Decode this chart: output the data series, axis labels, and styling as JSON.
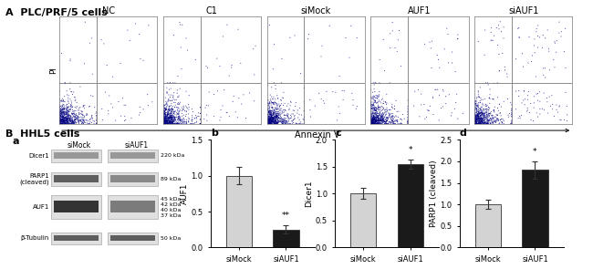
{
  "panel_A_label": "A  PLC/PRF/5 cells",
  "panel_B_label": "B  HHL5 cells",
  "flow_titles": [
    "NC",
    "C1",
    "siMock",
    "AUF1",
    "siAUF1"
  ],
  "panel_a_label": "a",
  "panel_b_label": "b",
  "panel_c_label": "c",
  "panel_d_label": "d",
  "bar_b": {
    "ylabel": "AUF1",
    "categories": [
      "siMock",
      "siAUF1"
    ],
    "values": [
      1.0,
      0.25
    ],
    "errors": [
      0.12,
      0.06
    ],
    "colors": [
      "#d3d3d3",
      "#1a1a1a"
    ],
    "ylim": [
      0,
      1.5
    ],
    "yticks": [
      0.0,
      0.5,
      1.0,
      1.5
    ],
    "significance": "**"
  },
  "bar_c": {
    "ylabel": "Dicer1",
    "categories": [
      "siMock",
      "siAUF1"
    ],
    "values": [
      1.0,
      1.55
    ],
    "errors": [
      0.1,
      0.08
    ],
    "colors": [
      "#d3d3d3",
      "#1a1a1a"
    ],
    "ylim": [
      0,
      2.0
    ],
    "yticks": [
      0.0,
      0.5,
      1.0,
      1.5,
      2.0
    ],
    "significance": "*"
  },
  "bar_d": {
    "ylabel": "PARP1 (cleaved)",
    "categories": [
      "siMock",
      "siAUF1"
    ],
    "values": [
      1.0,
      1.8
    ],
    "errors": [
      0.1,
      0.2
    ],
    "colors": [
      "#d3d3d3",
      "#1a1a1a"
    ],
    "ylim": [
      0,
      2.5
    ],
    "yticks": [
      0.0,
      0.5,
      1.0,
      1.5,
      2.0,
      2.5
    ],
    "significance": "*"
  },
  "bg_color": "#ffffff",
  "font_size_label": 7,
  "font_size_tick": 6,
  "font_size_panel": 8
}
